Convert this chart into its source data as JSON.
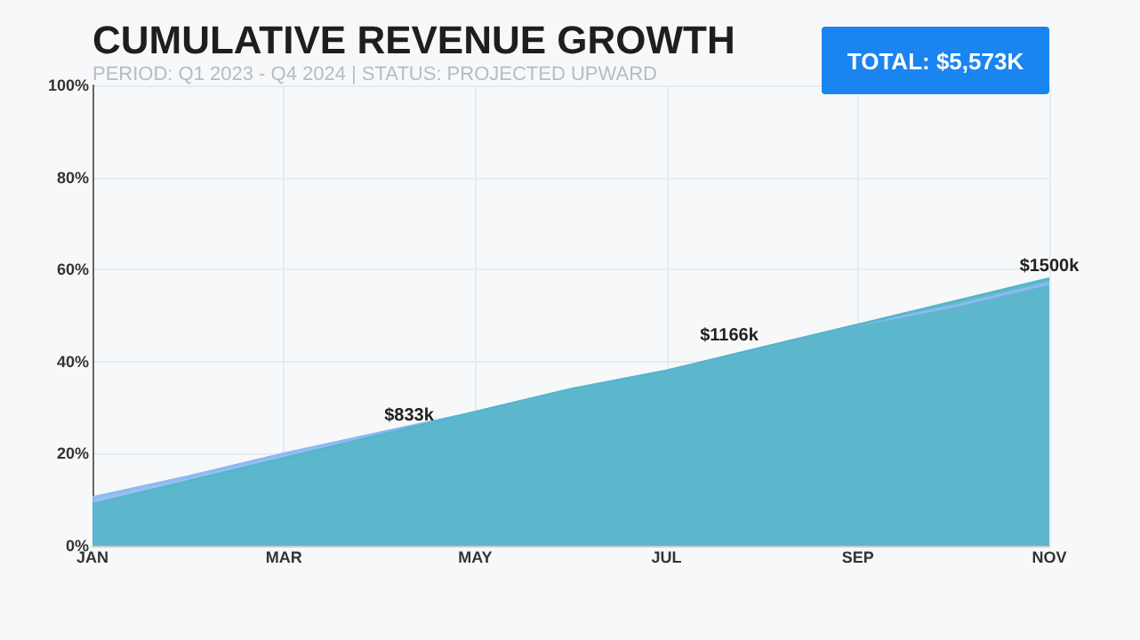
{
  "chart_data": {
    "type": "area",
    "title": "CUMULATIVE REVENUE GROWTH",
    "subtitle": "PERIOD: Q1 2023 - Q4 2024 | STATUS: PROJECTED UPWARD",
    "annotations": [
      "TOTAL: $5,573K",
      "$833k",
      "$1166k",
      "$1500k"
    ],
    "categories": [
      "JAN",
      null,
      "MAR",
      null,
      "MAY",
      null,
      "JUL",
      null,
      "SEP",
      null,
      "NOV"
    ],
    "ylim": [
      0,
      100
    ],
    "yticks": [
      {
        "value": 0,
        "label": "0%"
      },
      {
        "value": 20,
        "label": "20%"
      },
      {
        "value": 40,
        "label": "40%"
      },
      {
        "value": 60,
        "label": "60%"
      },
      {
        "value": 80,
        "label": "80%"
      },
      {
        "value": 100,
        "label": "100%"
      }
    ],
    "grid": true,
    "marker": "none",
    "series": [
      {
        "color": "#8db9f2",
        "values": [
          10.5,
          15,
          20,
          24.5,
          29,
          34,
          38,
          43,
          48,
          52,
          57
        ]
      },
      {
        "color": "#55b6c9",
        "values": [
          9,
          14,
          19,
          24,
          29,
          34,
          38,
          43,
          48,
          53,
          58
        ]
      }
    ]
  }
}
